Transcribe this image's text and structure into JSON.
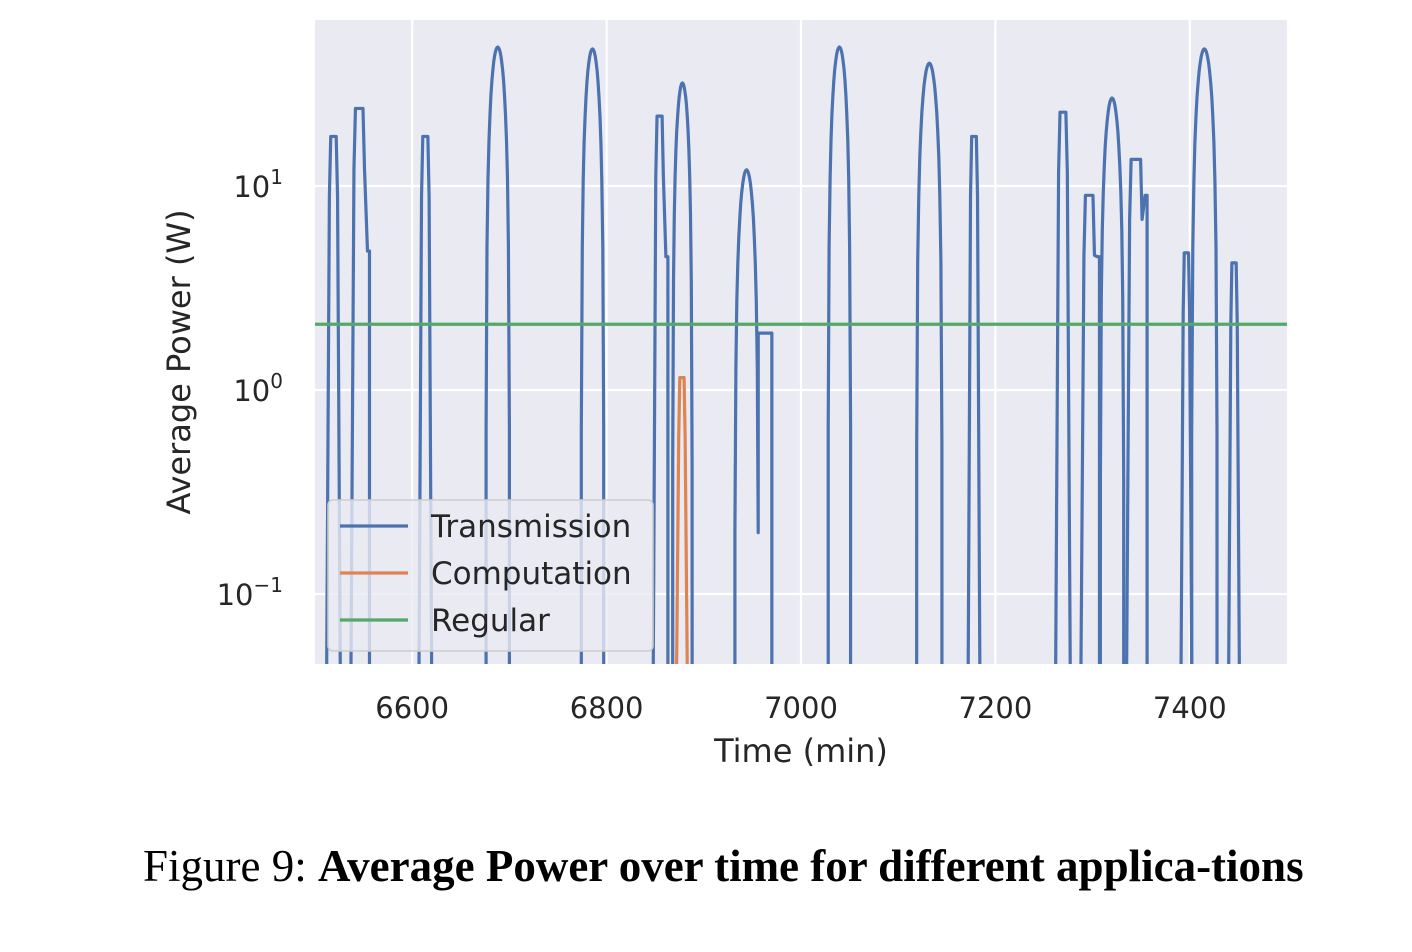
{
  "chart_data": {
    "type": "line",
    "title": "",
    "xlabel": "Time (min)",
    "ylabel": "Average Power (W)",
    "xlim": [
      6500,
      7500
    ],
    "ylim": [
      0.05,
      55
    ],
    "yscale": "log",
    "grid": true,
    "legend_position": "lower-left",
    "x_ticks": [
      6600,
      6800,
      7000,
      7200,
      7400
    ],
    "y_ticks": [
      {
        "value": 0.1,
        "base": "10",
        "exp": "−1"
      },
      {
        "value": 1,
        "base": "10",
        "exp": "0"
      },
      {
        "value": 10,
        "base": "10",
        "exp": "1"
      }
    ],
    "colors": {
      "Transmission": "#4c72b0",
      "Computation": "#dd8452",
      "Regular": "#55a868",
      "plot_bg": "#eaeaf2",
      "grid": "#ffffff"
    },
    "series": [
      {
        "name": "Transmission",
        "kind": "bursts",
        "bursts": [
          {
            "start": 6512,
            "end": 6526,
            "peak": 17.5,
            "shape": "rect"
          },
          {
            "start": 6537,
            "end": 6554,
            "peak": 24,
            "shape": "rect",
            "tail": 4.8
          },
          {
            "start": 6607,
            "end": 6620,
            "peak": 17.5,
            "shape": "rect"
          },
          {
            "start": 6676,
            "end": 6700,
            "peak": 48,
            "shape": "dome"
          },
          {
            "start": 6774,
            "end": 6797,
            "peak": 47,
            "shape": "dome"
          },
          {
            "start": 6848,
            "end": 6861,
            "peak": 22,
            "shape": "rect",
            "tail": 4.5
          },
          {
            "start": 6868,
            "end": 6888,
            "peak": 32,
            "shape": "dome"
          },
          {
            "start": 6932,
            "end": 6956,
            "peak": 12,
            "shape": "dome",
            "tail_to": 6970,
            "tail": 1.9
          },
          {
            "start": 7028,
            "end": 7051,
            "peak": 48,
            "shape": "dome"
          },
          {
            "start": 7119,
            "end": 7145,
            "peak": 40,
            "shape": "dome"
          },
          {
            "start": 7172,
            "end": 7184,
            "peak": 17.5,
            "shape": "rect"
          },
          {
            "start": 7262,
            "end": 7277,
            "peak": 23,
            "shape": "rect"
          },
          {
            "start": 7288,
            "end": 7305,
            "peak": 9,
            "shape": "rect",
            "tail": 4.5
          },
          {
            "start": 7308,
            "end": 7332,
            "peak": 27,
            "shape": "dome"
          },
          {
            "start": 7335,
            "end": 7354,
            "peak": 13.5,
            "shape": "rect",
            "tail": 9
          },
          {
            "start": 7391,
            "end": 7402,
            "peak": 4.7,
            "shape": "rect"
          },
          {
            "start": 7402,
            "end": 7428,
            "peak": 47,
            "shape": "dome"
          },
          {
            "start": 7440,
            "end": 7451,
            "peak": 4.2,
            "shape": "rect"
          }
        ]
      },
      {
        "name": "Computation",
        "kind": "bursts",
        "bursts": [
          {
            "start": 6872,
            "end": 6883,
            "peak": 1.15,
            "shape": "rect"
          }
        ]
      },
      {
        "name": "Regular",
        "kind": "constant",
        "value": 2.1
      }
    ]
  },
  "caption": {
    "prefix": "Figure 9: ",
    "bold_text": "Average Power over time for different applica-tions"
  }
}
